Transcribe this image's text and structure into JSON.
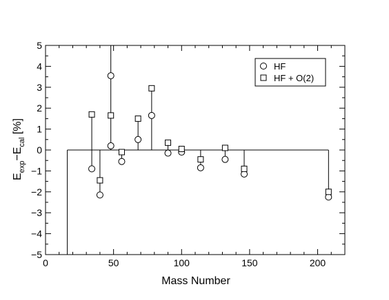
{
  "chart_data": {
    "type": "scatter",
    "xlabel": "Mass Number",
    "ylabel": {
      "base1": "E",
      "sub1": "exp",
      "mid": "−E",
      "sub2": "cal",
      "tail": " [%]"
    },
    "xlim": [
      0,
      220
    ],
    "ylim": [
      -5,
      5
    ],
    "x_ticks": [
      0,
      50,
      100,
      150,
      200
    ],
    "x_tick_labels": [
      "0",
      "50",
      "100",
      "150",
      "200"
    ],
    "y_ticks": [
      -5,
      -4,
      -3,
      -2,
      -1,
      0,
      1,
      2,
      3,
      4,
      5
    ],
    "y_tick_labels": [
      "−5",
      "−4",
      "−3",
      "−2",
      "−1",
      "0",
      "1",
      "2",
      "3",
      "4",
      "5"
    ],
    "grid": false,
    "legend": {
      "placement": "top-right",
      "entries": [
        {
          "label": "HF",
          "marker": "circle"
        },
        {
          "label": "HF + O(2)",
          "marker": "square"
        }
      ]
    },
    "series": [
      {
        "name": "HF",
        "marker": "circle",
        "x": [
          34,
          40,
          48,
          48,
          56,
          68,
          78,
          90,
          100,
          114,
          132,
          146,
          208
        ],
        "y": [
          -0.9,
          -2.15,
          3.55,
          0.2,
          -0.55,
          0.5,
          1.65,
          -0.15,
          -0.1,
          -0.85,
          -0.45,
          -1.15,
          -2.25
        ]
      },
      {
        "name": "HF + O(2)",
        "marker": "square",
        "x": [
          34,
          40,
          48,
          56,
          68,
          78,
          90,
          100,
          114,
          132,
          146,
          208
        ],
        "y": [
          1.7,
          -1.45,
          1.65,
          -0.1,
          1.5,
          2.95,
          0.35,
          0.05,
          -0.45,
          0.1,
          -0.9,
          -2.0
        ]
      }
    ],
    "stems": [
      {
        "x": 34,
        "y1": -0.9,
        "y2": 1.7
      },
      {
        "x": 40,
        "y1": -2.15,
        "y2": 0
      },
      {
        "x": 48,
        "y1": 0,
        "y2": 5
      },
      {
        "x": 56,
        "y1": -0.55,
        "y2": 0
      },
      {
        "x": 68,
        "y1": 0,
        "y2": 1.5
      },
      {
        "x": 78,
        "y1": 0,
        "y2": 2.95
      },
      {
        "x": 90,
        "y1": -0.15,
        "y2": 0.35
      },
      {
        "x": 100,
        "y1": -0.1,
        "y2": 0.05
      },
      {
        "x": 114,
        "y1": -0.85,
        "y2": 0
      },
      {
        "x": 132,
        "y1": -0.45,
        "y2": 0.1
      },
      {
        "x": 146,
        "y1": -1.15,
        "y2": 0
      },
      {
        "x": 208,
        "y1": -2.25,
        "y2": 0
      }
    ],
    "baseline": {
      "y": 0,
      "x_start": 16,
      "x_end": 208,
      "drop_x": 16,
      "drop_to": -5
    }
  }
}
